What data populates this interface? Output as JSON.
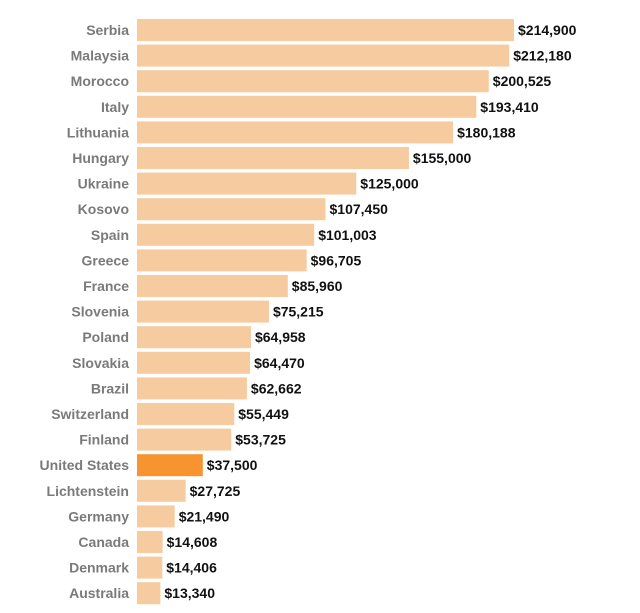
{
  "chart_data": {
    "type": "bar",
    "orientation": "horizontal",
    "categories": [
      "Serbia",
      "Malaysia",
      "Morocco",
      "Italy",
      "Lithuania",
      "Hungary",
      "Ukraine",
      "Kosovo",
      "Spain",
      "Greece",
      "France",
      "Slovenia",
      "Poland",
      "Slovakia",
      "Brazil",
      "Switzerland",
      "Finland",
      "United States",
      "Lichtenstein",
      "Germany",
      "Canada",
      "Denmark",
      "Australia"
    ],
    "values": [
      214900,
      212180,
      200525,
      193410,
      180188,
      155000,
      125000,
      107450,
      101003,
      96705,
      85960,
      75215,
      64958,
      64470,
      62662,
      55449,
      53725,
      37500,
      27725,
      21490,
      14608,
      14406,
      13340
    ],
    "data_labels": [
      "$214,900",
      "$212,180",
      "$200,525",
      "$193,410",
      "$180,188",
      "$155,000",
      "$125,000",
      "$107,450",
      "$101,003",
      "$96,705",
      "$85,960",
      "$75,215",
      "$64,958",
      "$64,470",
      "$62,662",
      "$55,449",
      "$53,725",
      "$37,500",
      "$27,725",
      "$21,490",
      "$14,608",
      "$14,406",
      "$13,340"
    ],
    "highlight": "United States",
    "colors": {
      "bar": "#f6cba0",
      "highlight": "#f7942f"
    },
    "xlim": [
      0,
      214900
    ],
    "grid": false,
    "title": "",
    "xlabel": "",
    "ylabel": ""
  }
}
